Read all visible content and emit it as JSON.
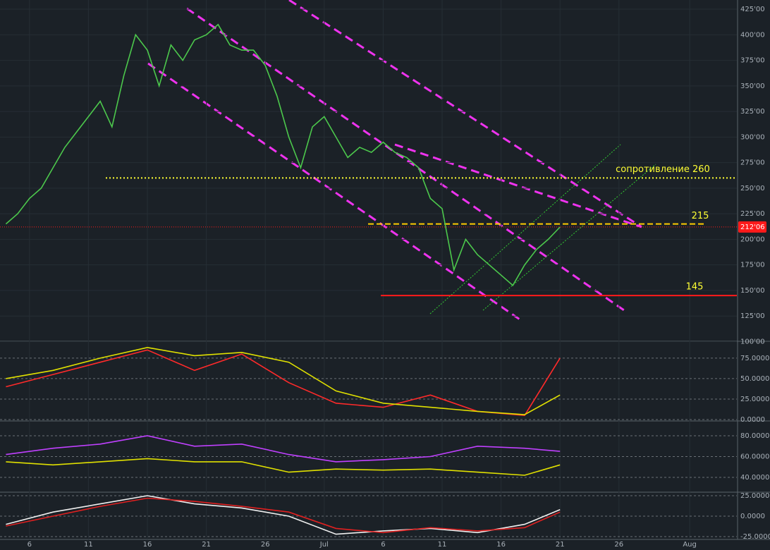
{
  "chart_data": [
    {
      "type": "line",
      "x": [
        -27,
        -26,
        -25,
        -24,
        -23,
        -22,
        -21,
        -20,
        -19,
        -18,
        -17,
        -16,
        -15,
        -14,
        -13,
        -12,
        -11,
        -10,
        -9,
        -8,
        -7,
        -6,
        -5,
        -4,
        -3,
        -2,
        -1,
        0,
        1,
        2,
        3,
        4,
        5,
        6,
        7,
        8,
        9,
        10,
        11,
        12,
        13,
        14,
        15,
        16,
        17,
        18,
        19,
        20
      ],
      "series": [
        {
          "color": "#4cc84c",
          "values": [
            215,
            225,
            240,
            250,
            270,
            290,
            305,
            320,
            335,
            310,
            360,
            400,
            385,
            350,
            390,
            375,
            395,
            400,
            410,
            390,
            385,
            385,
            370,
            340,
            300,
            270,
            310,
            320,
            300,
            280,
            290,
            285,
            295,
            285,
            280,
            270,
            240,
            230,
            170,
            200,
            185,
            175,
            165,
            155,
            175,
            190,
            200,
            212
          ]
        }
      ],
      "xlim": [
        -27.5,
        35
      ],
      "xticks": [
        {
          "value": -25,
          "label": "6"
        },
        {
          "value": -20,
          "label": "11"
        },
        {
          "value": -15,
          "label": "16"
        },
        {
          "value": -10,
          "label": "21"
        },
        {
          "value": -5,
          "label": "26"
        },
        {
          "value": 0,
          "label": "Jul"
        },
        {
          "value": 5,
          "label": "6"
        },
        {
          "value": 10,
          "label": "11"
        },
        {
          "value": 15,
          "label": "16"
        },
        {
          "value": 20,
          "label": "21"
        },
        {
          "value": 25,
          "label": "26"
        },
        {
          "value": 31,
          "label": "Aug"
        }
      ],
      "ylim": [
        101,
        434
      ],
      "yticks": [
        {
          "value": 100,
          "label": "100'00"
        },
        {
          "value": 125,
          "label": "125'00"
        },
        {
          "value": 150,
          "label": "150'00"
        },
        {
          "value": 175,
          "label": "175'00"
        },
        {
          "value": 200,
          "label": "200'00"
        },
        {
          "value": 225,
          "label": "225'00"
        },
        {
          "value": 250,
          "label": "250'00"
        },
        {
          "value": 275,
          "label": "275'00"
        },
        {
          "value": 300,
          "label": "300'00"
        },
        {
          "value": 325,
          "label": "325'00"
        },
        {
          "value": 350,
          "label": "350'00"
        },
        {
          "value": 375,
          "label": "375'00"
        },
        {
          "value": 400,
          "label": "400'00"
        },
        {
          "value": 425,
          "label": "425'00"
        }
      ],
      "grid": true,
      "levels": [
        {
          "value": 260,
          "label": "сопротивление 260",
          "color": "#ffff33",
          "style": "dotted"
        },
        {
          "value": 215,
          "color": "#ffcc00",
          "style": "dashed"
        },
        {
          "value": 145,
          "color": "#ff1a1a",
          "style": "solid"
        }
      ],
      "last_price": {
        "value": 212.06,
        "label": "212'06",
        "color": "#ff1a1a"
      }
    },
    {
      "type": "line",
      "x": [
        -27,
        -23,
        -19,
        -15,
        -11,
        -7,
        -3,
        1,
        5,
        9,
        13,
        17,
        20
      ],
      "series": [
        {
          "color": "#ff2a2a",
          "values": [
            40,
            55,
            70,
            85,
            60,
            80,
            45,
            20,
            15,
            30,
            10,
            5,
            75
          ]
        },
        {
          "color": "#e0e000",
          "values": [
            50,
            60,
            75,
            88,
            78,
            82,
            70,
            35,
            20,
            15,
            10,
            6,
            30
          ]
        }
      ],
      "xlim": [
        -27.5,
        35
      ],
      "ylim": [
        0,
        93
      ],
      "yticks": [
        {
          "value": 0,
          "label": "0.0000"
        },
        {
          "value": 25,
          "label": "25.0000"
        },
        {
          "value": 50,
          "label": "50.0000"
        },
        {
          "value": 75,
          "label": "75.0000"
        }
      ]
    },
    {
      "type": "line",
      "x": [
        -27,
        -23,
        -19,
        -15,
        -11,
        -7,
        -3,
        1,
        5,
        9,
        13,
        17,
        20
      ],
      "series": [
        {
          "color": "#c040ff",
          "values": [
            62,
            68,
            72,
            80,
            70,
            72,
            62,
            55,
            57,
            60,
            70,
            68,
            65
          ]
        },
        {
          "color": "#e0e000",
          "values": [
            55,
            52,
            55,
            58,
            55,
            55,
            45,
            48,
            47,
            48,
            45,
            42,
            52
          ]
        }
      ],
      "xlim": [
        -27.5,
        35
      ],
      "ylim": [
        26.4,
        93.6
      ],
      "yticks": [
        {
          "value": 40,
          "label": "40.0000"
        },
        {
          "value": 60,
          "label": "60.0000"
        },
        {
          "value": 80,
          "label": "80.0000"
        }
      ]
    },
    {
      "type": "line",
      "x": [
        -27,
        -23,
        -19,
        -15,
        -11,
        -7,
        -3,
        1,
        5,
        9,
        13,
        17,
        20
      ],
      "series": [
        {
          "color": "#f0f0f0",
          "values": [
            -10,
            5,
            15,
            25,
            15,
            10,
            0,
            -22,
            -18,
            -15,
            -20,
            -10,
            8
          ]
        },
        {
          "color": "#e02020",
          "values": [
            -12,
            0,
            12,
            22,
            18,
            12,
            5,
            -15,
            -20,
            -14,
            -18,
            -14,
            5
          ]
        }
      ],
      "xlim": [
        -27.5,
        35
      ],
      "ylim": [
        -28.4,
        27.6
      ],
      "yticks": [
        {
          "value": -25,
          "label": "-25.0000"
        },
        {
          "value": 0,
          "label": "0.0000"
        },
        {
          "value": 25,
          "label": "25.0000"
        }
      ]
    }
  ]
}
